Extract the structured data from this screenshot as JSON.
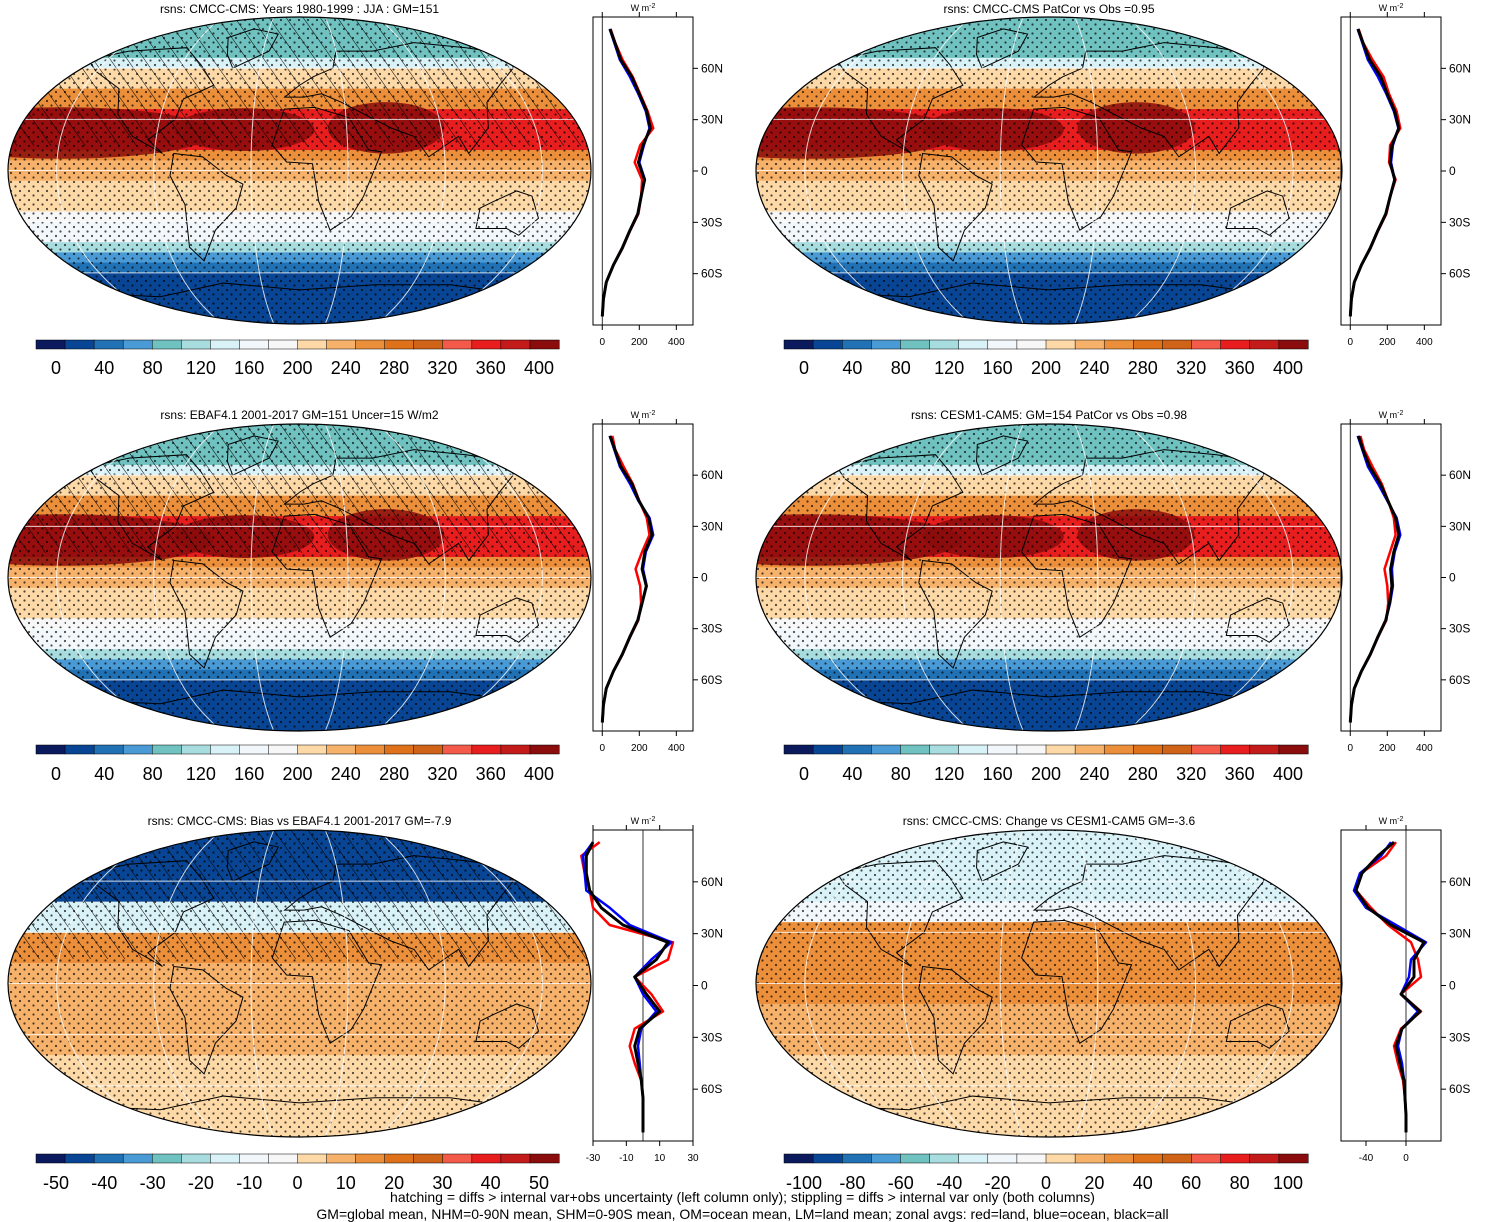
{
  "colors": {
    "blues": [
      "#0b1a5c",
      "#084594",
      "#2171b5",
      "#4a9ad6",
      "#6fc2c0",
      "#a8dde0",
      "#d8f2f8",
      "#f2f7fb"
    ],
    "neutral": "#f7f7f7",
    "oranges": [
      "#fdd9a8",
      "#f6b26b",
      "#ec8f3a",
      "#de7119",
      "#cf6318"
    ],
    "reds": [
      "#f45a4a",
      "#e81e1e",
      "#c31a1a",
      "#8a0c0c"
    ],
    "zonal_land": "#ff0000",
    "zonal_ocean": "#0000ff",
    "zonal_all": "#000000"
  },
  "chart_data": [
    {
      "type": "heatmap",
      "panel": "climatology-model",
      "title": "rsns: CMCC-CMS: Years 1980-1999 : JJA : GM=151",
      "colorbar_ticks": [
        "0",
        "40",
        "80",
        "120",
        "160",
        "200",
        "240",
        "280",
        "320",
        "360",
        "400"
      ],
      "zonal_unit": "W m",
      "zonal_unit_exp": "-2",
      "zonal_xticks": [
        "0",
        "200",
        "400"
      ],
      "zonal_xlim": [
        -50,
        490
      ],
      "lat_ticks": [
        "60N",
        "30N",
        "0",
        "30S",
        "60S"
      ],
      "zonal_lat": [
        -85,
        -75,
        -65,
        -55,
        -45,
        -35,
        -25,
        -15,
        -5,
        5,
        15,
        25,
        35,
        45,
        55,
        65,
        75,
        83
      ],
      "zonal_series": [
        {
          "color": "#ff0000",
          "values": [
            0,
            6,
            22,
            60,
            110,
            150,
            195,
            210,
            215,
            175,
            205,
            275,
            245,
            205,
            165,
            110,
            70,
            45
          ]
        },
        {
          "color": "#0000ff",
          "values": [
            0,
            6,
            22,
            60,
            108,
            148,
            192,
            210,
            230,
            200,
            225,
            255,
            235,
            195,
            150,
            95,
            65,
            40
          ]
        },
        {
          "color": "#000000",
          "values": [
            0,
            6,
            22,
            60,
            108,
            148,
            192,
            210,
            228,
            195,
            220,
            260,
            240,
            200,
            160,
            100,
            68,
            42
          ]
        }
      ]
    },
    {
      "type": "heatmap",
      "panel": "model-vs-obs",
      "title": "rsns: CMCC-CMS PatCor vs Obs =0.95",
      "colorbar_ticks": [
        "0",
        "40",
        "80",
        "120",
        "160",
        "200",
        "240",
        "280",
        "320",
        "360",
        "400"
      ],
      "zonal_unit": "W m",
      "zonal_unit_exp": "-2",
      "zonal_xticks": [
        "0",
        "200",
        "400"
      ],
      "zonal_xlim": [
        -50,
        490
      ],
      "lat_ticks": [
        "60N",
        "30N",
        "0",
        "30S",
        "60S"
      ],
      "zonal_lat": [
        -85,
        -75,
        -65,
        -55,
        -45,
        -35,
        -25,
        -15,
        -5,
        5,
        15,
        25,
        35,
        45,
        55,
        65,
        75,
        83
      ],
      "zonal_series": [
        {
          "color": "#ff0000",
          "values": [
            0,
            6,
            22,
            60,
            110,
            150,
            195,
            215,
            245,
            210,
            215,
            270,
            250,
            210,
            180,
            120,
            70,
            45
          ]
        },
        {
          "color": "#0000ff",
          "values": [
            0,
            6,
            22,
            60,
            108,
            148,
            192,
            215,
            240,
            220,
            230,
            260,
            235,
            195,
            150,
            95,
            65,
            40
          ]
        },
        {
          "color": "#000000",
          "values": [
            0,
            6,
            22,
            60,
            108,
            148,
            192,
            215,
            240,
            215,
            225,
            262,
            240,
            200,
            165,
            105,
            68,
            42
          ]
        }
      ]
    },
    {
      "type": "heatmap",
      "panel": "climatology-obs",
      "title": "rsns: EBAF4.1 2001-2017 GM=151 Uncer=15 W/m2",
      "colorbar_ticks": [
        "0",
        "40",
        "80",
        "120",
        "160",
        "200",
        "240",
        "280",
        "320",
        "360",
        "400"
      ],
      "zonal_unit": "W m",
      "zonal_unit_exp": "-2",
      "zonal_xticks": [
        "0",
        "200",
        "400"
      ],
      "zonal_xlim": [
        -50,
        490
      ],
      "lat_ticks": [
        "60N",
        "30N",
        "0",
        "30S",
        "60S"
      ],
      "zonal_lat": [
        -85,
        -75,
        -65,
        -55,
        -45,
        -35,
        -25,
        -15,
        -5,
        5,
        15,
        25,
        35,
        45,
        55,
        65,
        75,
        83
      ],
      "zonal_series": [
        {
          "color": "#ff0000",
          "values": [
            0,
            6,
            22,
            60,
            110,
            150,
            195,
            210,
            205,
            180,
            215,
            255,
            240,
            200,
            165,
            115,
            70,
            55
          ]
        },
        {
          "color": "#0000ff",
          "values": [
            0,
            6,
            22,
            60,
            108,
            148,
            192,
            215,
            240,
            220,
            235,
            275,
            255,
            195,
            150,
            95,
            65,
            40
          ]
        },
        {
          "color": "#000000",
          "values": [
            0,
            6,
            22,
            60,
            108,
            148,
            192,
            215,
            238,
            215,
            230,
            268,
            250,
            198,
            160,
            100,
            68,
            42
          ]
        }
      ]
    },
    {
      "type": "heatmap",
      "panel": "model2-vs-obs",
      "title": "rsns: CESM1-CAM5: GM=154 PatCor vs Obs =0.98",
      "colorbar_ticks": [
        "0",
        "40",
        "80",
        "120",
        "160",
        "200",
        "240",
        "280",
        "320",
        "360",
        "400"
      ],
      "zonal_unit": "W m",
      "zonal_unit_exp": "-2",
      "zonal_xticks": [
        "0",
        "200",
        "400"
      ],
      "zonal_xlim": [
        -50,
        490
      ],
      "lat_ticks": [
        "60N",
        "30N",
        "0",
        "30S",
        "60S"
      ],
      "zonal_lat": [
        -85,
        -75,
        -65,
        -55,
        -45,
        -35,
        -25,
        -15,
        -5,
        5,
        15,
        25,
        35,
        45,
        55,
        65,
        75,
        83
      ],
      "zonal_series": [
        {
          "color": "#ff0000",
          "values": [
            0,
            6,
            22,
            60,
            110,
            150,
            195,
            205,
            200,
            185,
            215,
            245,
            235,
            205,
            170,
            120,
            75,
            55
          ]
        },
        {
          "color": "#0000ff",
          "values": [
            0,
            6,
            22,
            60,
            108,
            148,
            192,
            215,
            230,
            225,
            240,
            270,
            250,
            200,
            150,
            95,
            65,
            40
          ]
        },
        {
          "color": "#000000",
          "values": [
            0,
            6,
            22,
            60,
            108,
            148,
            192,
            212,
            225,
            218,
            235,
            262,
            245,
            203,
            162,
            105,
            68,
            45
          ]
        }
      ]
    },
    {
      "type": "heatmap",
      "panel": "bias",
      "title": "rsns: CMCC-CMS: Bias vs EBAF4.1 2001-2017 GM=-7.9",
      "colorbar_ticks": [
        "-50",
        "-40",
        "-30",
        "-20",
        "-10",
        "0",
        "10",
        "20",
        "30",
        "40",
        "50"
      ],
      "zonal_unit": "W m",
      "zonal_unit_exp": "-2",
      "zonal_xticks": [
        "-30",
        "-10",
        "10",
        "30"
      ],
      "zonal_xlim": [
        -30,
        30
      ],
      "lat_ticks": [
        "60N",
        "30N",
        "0",
        "30S",
        "60S"
      ],
      "zonal_lat": [
        -85,
        -75,
        -65,
        -55,
        -45,
        -35,
        -25,
        -15,
        -5,
        5,
        15,
        25,
        35,
        45,
        55,
        65,
        75,
        83
      ],
      "zonal_series": [
        {
          "color": "#ff0000",
          "values": [
            0,
            0,
            0,
            -1,
            -5,
            -8,
            -5,
            12,
            5,
            -5,
            15,
            18,
            -20,
            -30,
            -32,
            -35,
            -37,
            -26
          ]
        },
        {
          "color": "#0000ff",
          "values": [
            0,
            0,
            0,
            -1,
            -2,
            -3,
            -1,
            8,
            0,
            -5,
            5,
            17,
            -8,
            -20,
            -34,
            -35,
            -36,
            -30
          ]
        },
        {
          "color": "#000000",
          "values": [
            0,
            0,
            0,
            -1,
            -3,
            -5,
            -2,
            10,
            2,
            -5,
            8,
            15,
            -12,
            -25,
            -32,
            -34,
            -34,
            -30
          ]
        }
      ]
    },
    {
      "type": "heatmap",
      "panel": "change",
      "title": "rsns: CMCC-CMS: Change vs CESM1-CAM5 GM=-3.6",
      "colorbar_ticks": [
        "-100",
        "-80",
        "-60",
        "-40",
        "-20",
        "0",
        "20",
        "40",
        "60",
        "80",
        "100"
      ],
      "zonal_unit": "W m",
      "zonal_unit_exp": "-2",
      "zonal_xticks": [
        "-40",
        "0"
      ],
      "zonal_xlim": [
        -65,
        35
      ],
      "lat_ticks": [
        "60N",
        "30N",
        "0",
        "30S",
        "60S"
      ],
      "zonal_lat": [
        -85,
        -75,
        -65,
        -55,
        -45,
        -35,
        -25,
        -15,
        -5,
        5,
        15,
        25,
        35,
        45,
        55,
        65,
        75,
        83
      ],
      "zonal_series": [
        {
          "color": "#ff0000",
          "values": [
            0,
            0,
            -1,
            -3,
            -8,
            -12,
            -5,
            15,
            -5,
            15,
            12,
            5,
            -18,
            -35,
            -50,
            -45,
            -20,
            -10
          ]
        },
        {
          "color": "#0000ff",
          "values": [
            0,
            0,
            -1,
            -2,
            -4,
            -8,
            -4,
            12,
            -5,
            3,
            5,
            20,
            -10,
            -40,
            -52,
            -46,
            -25,
            -15
          ]
        },
        {
          "color": "#000000",
          "values": [
            0,
            0,
            -1,
            -2,
            -6,
            -10,
            -4,
            14,
            -5,
            8,
            8,
            18,
            -15,
            -38,
            -50,
            -44,
            -28,
            -12
          ]
        }
      ]
    }
  ],
  "footnotes": {
    "line1": "hatching = diffs > internal var+obs uncertainty (left column only); stippling = diffs > internal var only (both columns)",
    "line2": "GM=global mean, NHM=0-90N mean, SHM=0-90S mean, OM=ocean mean, LM=land mean; zonal avgs: red=land, blue=ocean, black=all"
  }
}
